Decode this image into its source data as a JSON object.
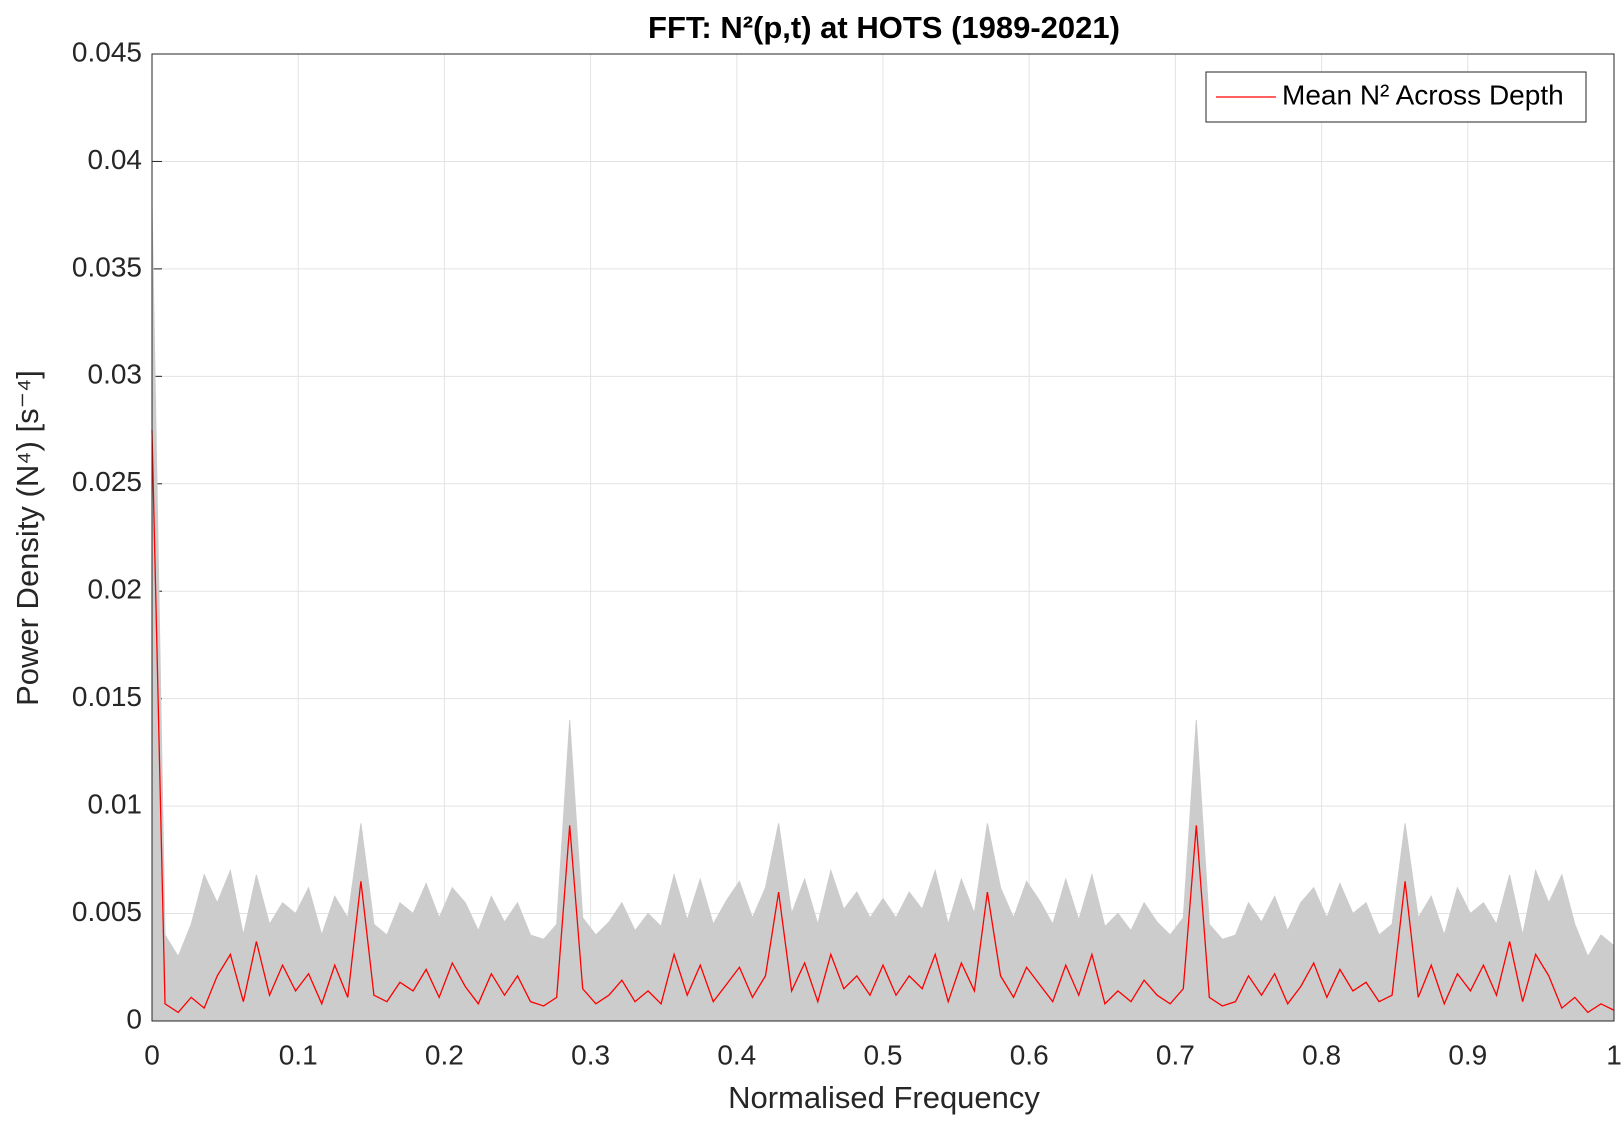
{
  "chart_data": {
    "type": "line",
    "title": "FFT: N²(p,t) at HOTS (1989-2021)",
    "xlabel": "Normalised Frequency",
    "ylabel": "Power Density (N⁴) [s⁻⁴]",
    "x": [
      0,
      0.0089,
      0.0179,
      0.0268,
      0.0357,
      0.0446,
      0.0536,
      0.0625,
      0.0714,
      0.0804,
      0.0893,
      0.0982,
      0.1071,
      0.1161,
      0.125,
      0.1339,
      0.1429,
      0.1518,
      0.1607,
      0.1696,
      0.1786,
      0.1875,
      0.1964,
      0.2054,
      0.2143,
      0.2232,
      0.2321,
      0.2411,
      0.25,
      0.2589,
      0.2679,
      0.2768,
      0.2857,
      0.2946,
      0.3036,
      0.3125,
      0.3214,
      0.3304,
      0.3393,
      0.3482,
      0.3571,
      0.3661,
      0.375,
      0.3839,
      0.3929,
      0.4018,
      0.4107,
      0.4196,
      0.4286,
      0.4375,
      0.4464,
      0.4554,
      0.4643,
      0.4732,
      0.4821,
      0.4911,
      0.5,
      0.5089,
      0.5179,
      0.5268,
      0.5357,
      0.5446,
      0.5536,
      0.5625,
      0.5714,
      0.5804,
      0.5893,
      0.5982,
      0.6071,
      0.6161,
      0.625,
      0.6339,
      0.6429,
      0.6518,
      0.6607,
      0.6696,
      0.6786,
      0.6875,
      0.6964,
      0.7054,
      0.7143,
      0.7232,
      0.7321,
      0.7411,
      0.75,
      0.7589,
      0.7679,
      0.7768,
      0.7857,
      0.7946,
      0.8036,
      0.8125,
      0.8214,
      0.8304,
      0.8393,
      0.8482,
      0.8571,
      0.8661,
      0.875,
      0.8839,
      0.8929,
      0.9018,
      0.9107,
      0.9196,
      0.9286,
      0.9375,
      0.9464,
      0.9554,
      0.9643,
      0.9732,
      0.9821,
      0.9911,
      1
    ],
    "series": [
      {
        "color": "#cccccc",
        "fill": true,
        "values": [
          0.038,
          0.004,
          0.003,
          0.0045,
          0.0068,
          0.0055,
          0.007,
          0.004,
          0.0068,
          0.0045,
          0.0055,
          0.005,
          0.0062,
          0.004,
          0.0058,
          0.0048,
          0.0092,
          0.0045,
          0.004,
          0.0055,
          0.005,
          0.0064,
          0.0048,
          0.0062,
          0.0055,
          0.0042,
          0.0058,
          0.0046,
          0.0055,
          0.004,
          0.0038,
          0.0045,
          0.014,
          0.0048,
          0.004,
          0.0046,
          0.0055,
          0.0042,
          0.005,
          0.0044,
          0.0068,
          0.0047,
          0.0066,
          0.0045,
          0.0056,
          0.0065,
          0.0048,
          0.0062,
          0.0092,
          0.005,
          0.0066,
          0.0045,
          0.007,
          0.0052,
          0.006,
          0.0048,
          0.0057,
          0.0048,
          0.006,
          0.0052,
          0.007,
          0.0045,
          0.0066,
          0.005,
          0.0092,
          0.0062,
          0.0048,
          0.0065,
          0.0056,
          0.0045,
          0.0066,
          0.0047,
          0.0068,
          0.0044,
          0.005,
          0.0042,
          0.0055,
          0.0046,
          0.004,
          0.0048,
          0.014,
          0.0045,
          0.0038,
          0.004,
          0.0055,
          0.0046,
          0.0058,
          0.0042,
          0.0055,
          0.0062,
          0.0048,
          0.0064,
          0.005,
          0.0055,
          0.004,
          0.0045,
          0.0092,
          0.0048,
          0.0058,
          0.004,
          0.0062,
          0.005,
          0.0055,
          0.0045,
          0.0068,
          0.004,
          0.007,
          0.0055,
          0.0068,
          0.0045,
          0.003,
          0.004,
          0.0035
        ]
      },
      {
        "name": "Mean N² Across Depth",
        "color": "#ff0000",
        "values": [
          0.0275,
          0.0008,
          0.0004,
          0.0011,
          0.0006,
          0.0021,
          0.0031,
          0.0009,
          0.0037,
          0.0012,
          0.0026,
          0.0014,
          0.0022,
          0.0008,
          0.0026,
          0.0011,
          0.0065,
          0.0012,
          0.0009,
          0.0018,
          0.0014,
          0.0024,
          0.0011,
          0.0027,
          0.0016,
          0.0008,
          0.0022,
          0.0012,
          0.0021,
          0.0009,
          0.0007,
          0.0011,
          0.0091,
          0.0015,
          0.0008,
          0.0012,
          0.0019,
          0.0009,
          0.0014,
          0.0008,
          0.0031,
          0.0012,
          0.0026,
          0.0009,
          0.0017,
          0.0025,
          0.0011,
          0.0021,
          0.006,
          0.0014,
          0.0027,
          0.0009,
          0.0031,
          0.0015,
          0.0021,
          0.0012,
          0.0026,
          0.0012,
          0.0021,
          0.0015,
          0.0031,
          0.0009,
          0.0027,
          0.0014,
          0.006,
          0.0021,
          0.0011,
          0.0025,
          0.0017,
          0.0009,
          0.0026,
          0.0012,
          0.0031,
          0.0008,
          0.0014,
          0.0009,
          0.0019,
          0.0012,
          0.0008,
          0.0015,
          0.0091,
          0.0011,
          0.0007,
          0.0009,
          0.0021,
          0.0012,
          0.0022,
          0.0008,
          0.0016,
          0.0027,
          0.0011,
          0.0024,
          0.0014,
          0.0018,
          0.0009,
          0.0012,
          0.0065,
          0.0011,
          0.0026,
          0.0008,
          0.0022,
          0.0014,
          0.0026,
          0.0012,
          0.0037,
          0.0009,
          0.0031,
          0.0021,
          0.0006,
          0.0011,
          0.0004,
          0.0008,
          0.0005
        ]
      }
    ],
    "xlim": [
      0,
      1
    ],
    "xticks": [
      0,
      0.1,
      0.2,
      0.3,
      0.4,
      0.5,
      0.6,
      0.7,
      0.8,
      0.9,
      1
    ],
    "ylim": [
      0,
      0.045
    ],
    "yticks": [
      0,
      0.005,
      0.01,
      0.015,
      0.02,
      0.025,
      0.03,
      0.035,
      0.04,
      0.045
    ],
    "grid": true,
    "legend": "upper right"
  }
}
